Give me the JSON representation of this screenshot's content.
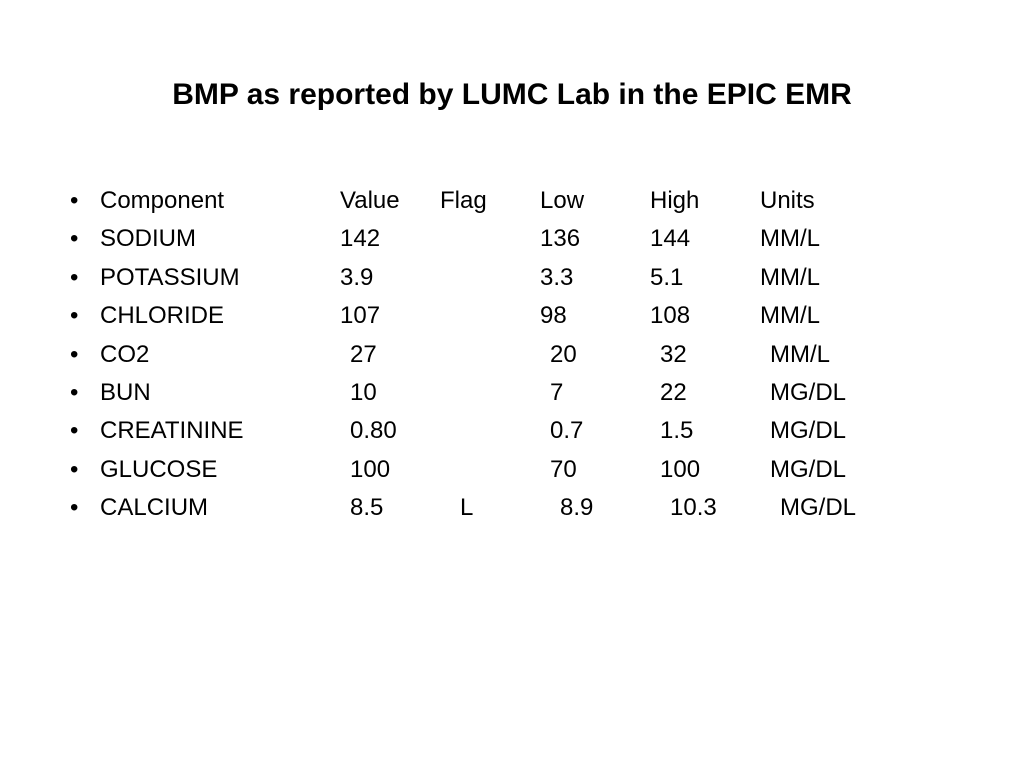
{
  "title": "BMP  as reported by  LUMC Lab in the EPIC EMR",
  "bullet": "•",
  "headers": {
    "component": "Component",
    "value": "Value",
    "flag": "Flag",
    "low": "Low",
    "high": "High",
    "units": "Units"
  },
  "rows": [
    {
      "component": "SODIUM",
      "value": "142",
      "flag": "",
      "low": "136",
      "high": "144",
      "units": "MM/L",
      "value_pad": false
    },
    {
      "component": "POTASSIUM",
      "value": "3.9",
      "flag": "",
      "low": "3.3",
      "high": "5.1",
      "units": "MM/L",
      "value_pad": false
    },
    {
      "component": "CHLORIDE",
      "value": "107",
      "flag": "",
      "low": "98",
      "high": "108",
      "units": "MM/L",
      "value_pad": false
    },
    {
      "component": "CO2",
      "value": "27",
      "flag": "",
      "low": "20",
      "high": "32",
      "units": "MM/L",
      "value_pad": true
    },
    {
      "component": "BUN",
      "value": "10",
      "flag": "",
      "low": "7",
      "high": "22",
      "units": "MG/DL",
      "value_pad": true
    },
    {
      "component": "CREATININE",
      "value": "0.80",
      "flag": "",
      "low": "0.7",
      "high": "1.5",
      "units": "MG/DL",
      "value_pad": true
    },
    {
      "component": "GLUCOSE",
      "value": "100",
      "flag": "",
      "low": "70",
      "high": "100",
      "units": "MG/DL",
      "value_pad": true
    },
    {
      "component": "CALCIUM",
      "value": "8.5",
      "flag": "L",
      "low": "8.9",
      "high": "10.3",
      "units": "MG/DL",
      "value_pad": true
    }
  ],
  "style": {
    "background_color": "#ffffff",
    "text_color": "#000000",
    "font_family": "Arial",
    "title_fontsize": 30,
    "body_fontsize": 24
  }
}
